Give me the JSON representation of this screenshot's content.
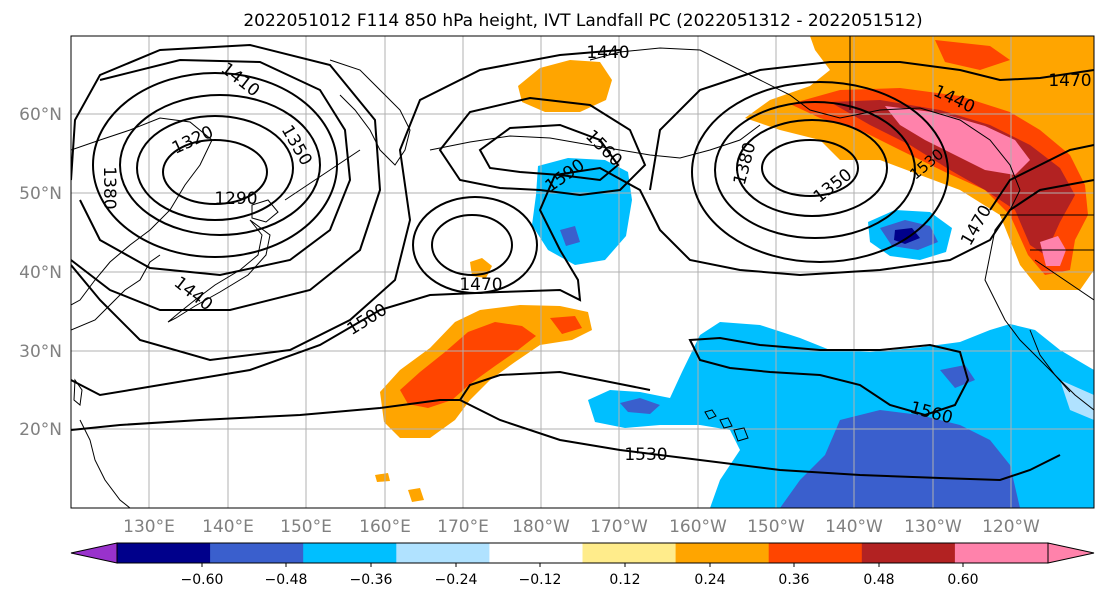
{
  "title": "2022051012 F114 850 hPa height, IVT Landfall PC (2022051312 - 2022051512)",
  "map": {
    "lat_labels": [
      "60°N",
      "50°N",
      "40°N",
      "30°N",
      "20°N"
    ],
    "lon_labels": [
      "130°E",
      "140°E",
      "150°E",
      "160°E",
      "170°E",
      "180°W",
      "170°W",
      "160°W",
      "150°W",
      "140°W",
      "130°W",
      "120°W"
    ],
    "contour_labels": [
      "1440",
      "1470",
      "1440",
      "1410",
      "1320",
      "1350",
      "1290",
      "1380",
      "1560",
      "1590",
      "1380",
      "1350",
      "1470",
      "1470",
      "1440",
      "1500",
      "1560",
      "1530",
      "1530"
    ]
  },
  "colorbar": {
    "tick_labels": [
      "−0.60",
      "−0.48",
      "−0.36",
      "−0.24",
      "−0.12",
      "0.12",
      "0.24",
      "0.36",
      "0.48",
      "0.60"
    ],
    "colors": [
      "#9932cc",
      "#00008b",
      "#3a5fcd",
      "#00bfff",
      "#b0e2ff",
      "#ffffff",
      "#ffec8b",
      "#ffa500",
      "#ff4500",
      "#b22222",
      "#ff82ab",
      "#ff82ab"
    ]
  }
}
